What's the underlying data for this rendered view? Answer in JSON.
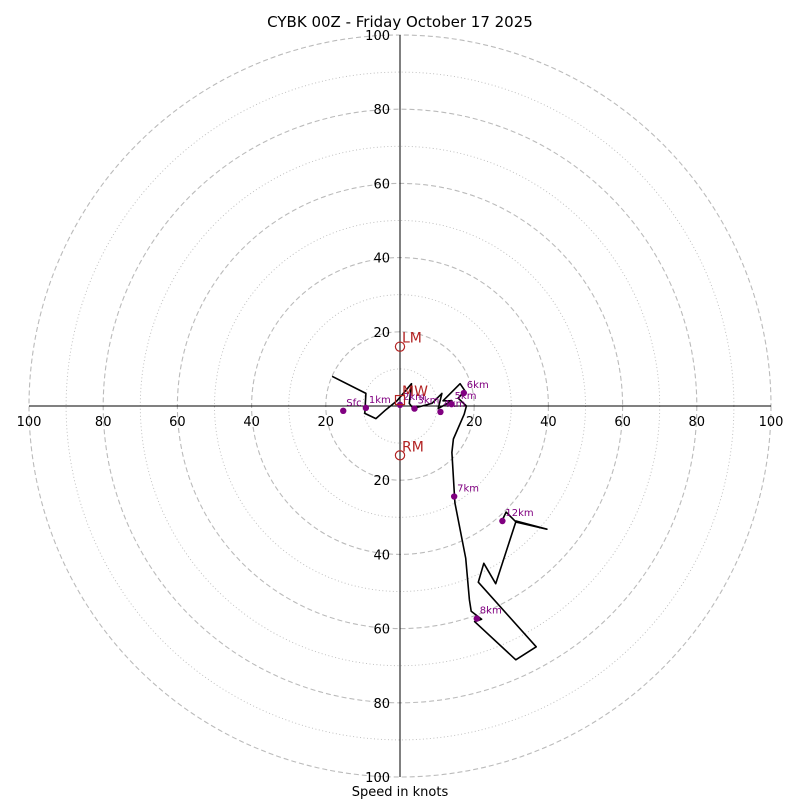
{
  "chart_data": {
    "type": "hodograph",
    "title": "CYBK 00Z - Friday October 17 2025",
    "xlabel": "Speed in knots",
    "max_speed": 100,
    "rings_major": [
      20,
      40,
      60,
      80,
      100
    ],
    "rings_minor": [
      10,
      30,
      50,
      70,
      90
    ],
    "tick_labels": [
      "20",
      "40",
      "60",
      "80",
      "100"
    ],
    "colors": {
      "trace": "#000000",
      "points": "#800080",
      "motion": "#b22222",
      "ring": "#bbbbbb",
      "axis": "#000000"
    },
    "hodograph_trace": {
      "u": [
        -18.3,
        -9.2,
        -9.5,
        -6.5,
        -3.8,
        -0.8,
        3.1,
        2.5,
        3.8,
        4.1,
        8.6,
        11.3,
        10.3,
        14.0,
        11.6,
        16.2,
        17.5,
        15.7,
        17.9,
        17.3,
        14.4,
        14.0,
        14.8,
        17.7,
        18.7,
        19.2,
        22.0,
        20.1,
        31.2,
        36.7,
        21.1,
        22.6,
        25.8,
        31.3,
        39.6,
        31.3,
        28.6,
        27.6
      ],
      "v": [
        8.0,
        3.4,
        -2.0,
        -3.4,
        -1.0,
        1.4,
        6.0,
        0.7,
        -1.0,
        -0.5,
        0.7,
        3.4,
        -0.7,
        1.4,
        1.4,
        6.0,
        4.1,
        2.1,
        0.0,
        -2.2,
        -8.9,
        -12.5,
        -26.1,
        -41.0,
        -52.2,
        -55.3,
        -57.5,
        -58.1,
        -68.4,
        -64.9,
        -47.5,
        -42.4,
        -47.9,
        -31.0,
        -33.2,
        -31.3,
        -28.6,
        -30.7
      ]
    },
    "height_markers": [
      {
        "label": "Sfc",
        "u": -15.3,
        "v": -1.3
      },
      {
        "label": "1km",
        "u": -9.2,
        "v": -0.5
      },
      {
        "label": "2km",
        "u": 0.0,
        "v": 0.3
      },
      {
        "label": "3km",
        "u": 3.9,
        "v": -0.7
      },
      {
        "label": "4km",
        "u": 10.9,
        "v": -1.6
      },
      {
        "label": "5km",
        "u": 13.9,
        "v": 0.5
      },
      {
        "label": "6km",
        "u": 17.2,
        "v": 3.5
      },
      {
        "label": "7km",
        "u": 14.6,
        "v": -24.4
      },
      {
        "label": "8km",
        "u": 20.7,
        "v": -57.3
      },
      {
        "label": "12km",
        "u": 27.6,
        "v": -31.0
      }
    ],
    "storm_motion": [
      {
        "label": "LM",
        "u": 0.0,
        "v": 16.0,
        "marker": "circle"
      },
      {
        "label": "MW",
        "u": 0.0,
        "v": 1.6,
        "marker": "square"
      },
      {
        "label": "RM",
        "u": 0.0,
        "v": -13.3,
        "marker": "circle"
      }
    ]
  }
}
